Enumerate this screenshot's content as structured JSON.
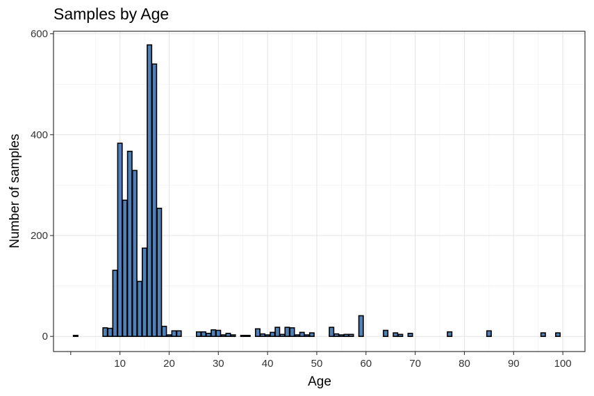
{
  "chart_data": {
    "type": "bar",
    "title": "Samples by Age",
    "xlabel": "Age",
    "ylabel": "Number of samples",
    "xlim": [
      -3.5,
      104.5
    ],
    "ylim": [
      -30,
      605
    ],
    "x_ticks": [
      10,
      20,
      30,
      40,
      50,
      60,
      70,
      80,
      90,
      100
    ],
    "y_ticks": [
      0,
      200,
      400,
      600
    ],
    "grid": true,
    "bar_color": "#4f81b8",
    "series": [
      {
        "x": [
          1,
          7,
          8,
          9,
          10,
          11,
          12,
          13,
          14,
          15,
          16,
          17,
          18,
          19,
          20,
          21,
          22,
          26,
          27,
          28,
          29,
          30,
          31,
          32,
          33,
          35,
          36,
          38,
          39,
          40,
          41,
          42,
          43,
          44,
          45,
          46,
          47,
          48,
          49,
          53,
          54,
          55,
          56,
          57,
          59,
          64,
          66,
          67,
          69,
          77,
          85,
          96,
          99
        ],
        "values": [
          2,
          17,
          16,
          131,
          383,
          270,
          367,
          329,
          109,
          175,
          578,
          540,
          254,
          20,
          3,
          11,
          11,
          9,
          9,
          6,
          13,
          12,
          3,
          6,
          3,
          2,
          2,
          15,
          5,
          3,
          8,
          18,
          4,
          18,
          17,
          3,
          8,
          3,
          7,
          18,
          5,
          3,
          4,
          4,
          41,
          12,
          7,
          4,
          6,
          9,
          11,
          7,
          7
        ]
      }
    ]
  }
}
